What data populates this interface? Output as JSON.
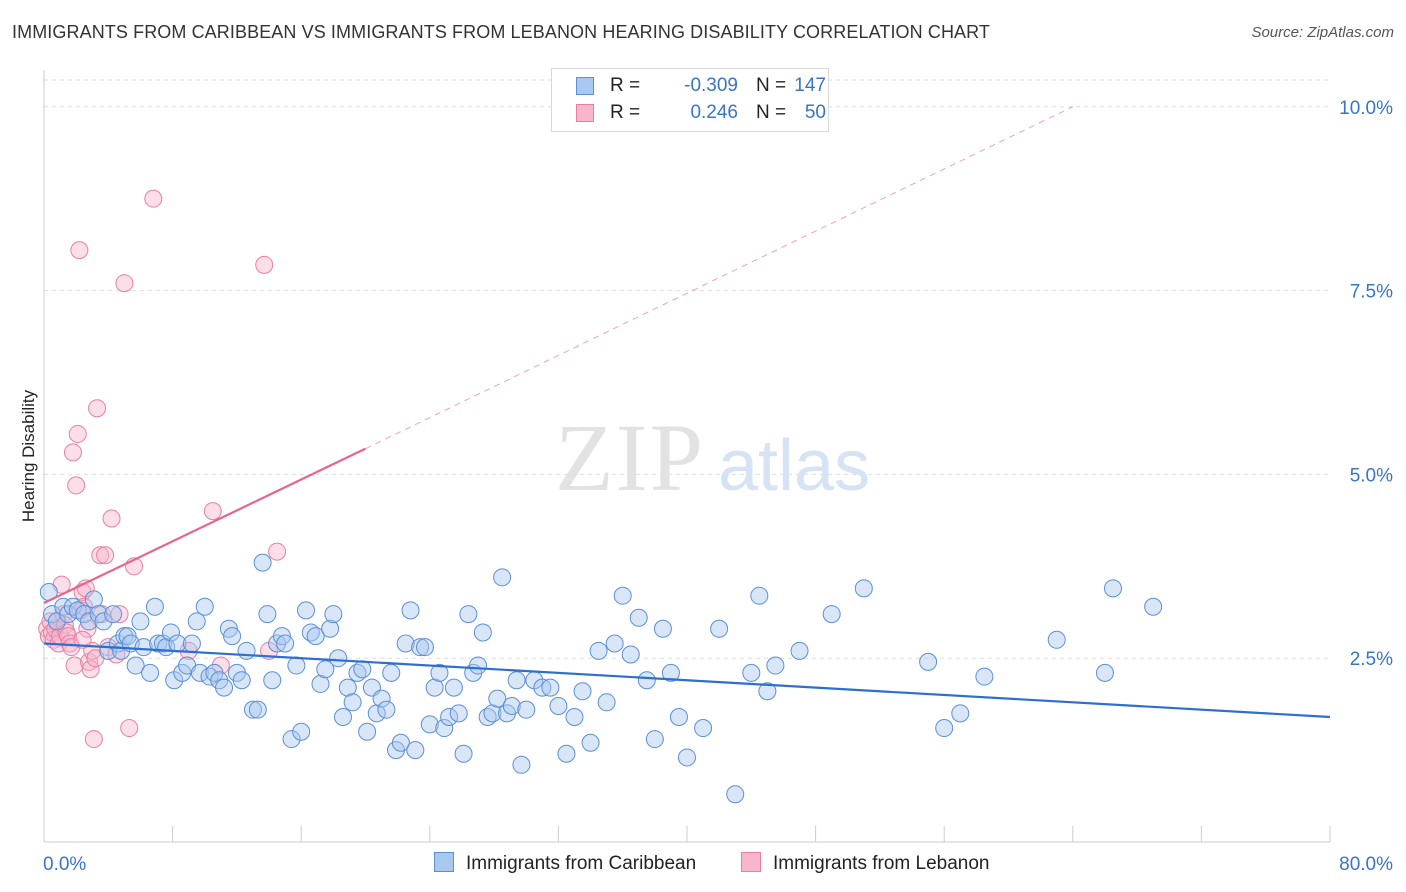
{
  "title": "IMMIGRANTS FROM CARIBBEAN VS IMMIGRANTS FROM LEBANON HEARING DISABILITY CORRELATION CHART",
  "source": "Source: ZipAtlas.com",
  "watermark": {
    "zip": "ZIP",
    "atlas": "atlas"
  },
  "legend": {
    "r_label": "R =",
    "n_label": "N =",
    "rows": [
      {
        "r": "-0.309",
        "n": "147"
      },
      {
        "r": "0.246",
        "n": "50"
      }
    ]
  },
  "colors": {
    "caribbean_fill": "#a9c8f0",
    "caribbean_stroke": "#5b8fd6",
    "caribbean_line": "#2c6fcf",
    "lebanon_fill": "#f7b6cb",
    "lebanon_stroke": "#e87fa2",
    "lebanon_line": "#e8638e",
    "tick_label": "#3a74c4",
    "grid": "#dddddd"
  },
  "chart_data": {
    "type": "scatter",
    "title": "IMMIGRANTS FROM CARIBBEAN VS IMMIGRANTS FROM LEBANON HEARING DISABILITY CORRELATION CHART",
    "xlabel": "",
    "ylabel": "Hearing Disability",
    "xlim": [
      0,
      80
    ],
    "ylim": [
      0,
      10.5
    ],
    "x_tick_labels": {
      "min": "0.0%",
      "max": "80.0%"
    },
    "y_ticks": [
      {
        "value": 2.5,
        "label": "2.5%"
      },
      {
        "value": 5.0,
        "label": "5.0%"
      },
      {
        "value": 7.5,
        "label": "7.5%"
      },
      {
        "value": 10.0,
        "label": "10.0%"
      }
    ],
    "grid": "horizontal dashed",
    "legend_position": "top-center",
    "series": [
      {
        "name": "Immigrants from Caribbean",
        "r": -0.309,
        "n": 147,
        "trend": {
          "x": [
            0,
            80
          ],
          "y": [
            2.7,
            1.7
          ],
          "dashed_extension": false
        },
        "points": [
          [
            0.3,
            3.4
          ],
          [
            0.5,
            3.1
          ],
          [
            0.8,
            3.0
          ],
          [
            1.2,
            3.2
          ],
          [
            1.5,
            3.1
          ],
          [
            1.8,
            3.2
          ],
          [
            2.1,
            3.15
          ],
          [
            2.5,
            3.1
          ],
          [
            2.8,
            3.0
          ],
          [
            3.1,
            3.3
          ],
          [
            3.4,
            3.1
          ],
          [
            3.7,
            3.0
          ],
          [
            4.0,
            2.6
          ],
          [
            4.3,
            3.1
          ],
          [
            4.6,
            2.7
          ],
          [
            4.8,
            2.6
          ],
          [
            5.0,
            2.8
          ],
          [
            5.2,
            2.8
          ],
          [
            5.4,
            2.7
          ],
          [
            5.7,
            2.4
          ],
          [
            6.0,
            3.0
          ],
          [
            6.2,
            2.65
          ],
          [
            6.6,
            2.3
          ],
          [
            6.9,
            3.2
          ],
          [
            7.1,
            2.7
          ],
          [
            7.4,
            2.7
          ],
          [
            7.6,
            2.65
          ],
          [
            7.9,
            2.85
          ],
          [
            8.1,
            2.2
          ],
          [
            8.3,
            2.7
          ],
          [
            8.6,
            2.3
          ],
          [
            8.9,
            2.4
          ],
          [
            9.2,
            2.7
          ],
          [
            9.5,
            3.0
          ],
          [
            9.7,
            2.3
          ],
          [
            10.0,
            3.2
          ],
          [
            10.3,
            2.25
          ],
          [
            10.6,
            2.3
          ],
          [
            10.9,
            2.2
          ],
          [
            11.2,
            2.1
          ],
          [
            11.5,
            2.9
          ],
          [
            11.7,
            2.8
          ],
          [
            12.0,
            2.3
          ],
          [
            12.3,
            2.2
          ],
          [
            12.6,
            2.6
          ],
          [
            13.0,
            1.8
          ],
          [
            13.3,
            1.8
          ],
          [
            13.6,
            3.8
          ],
          [
            13.9,
            3.1
          ],
          [
            14.2,
            2.2
          ],
          [
            14.5,
            2.7
          ],
          [
            14.8,
            2.8
          ],
          [
            15.0,
            2.7
          ],
          [
            15.4,
            1.4
          ],
          [
            15.7,
            2.4
          ],
          [
            16.0,
            1.5
          ],
          [
            16.3,
            3.15
          ],
          [
            16.6,
            2.85
          ],
          [
            16.9,
            2.8
          ],
          [
            17.2,
            2.15
          ],
          [
            17.5,
            2.35
          ],
          [
            17.8,
            2.9
          ],
          [
            18.0,
            3.1
          ],
          [
            18.3,
            2.5
          ],
          [
            18.6,
            1.7
          ],
          [
            18.9,
            2.1
          ],
          [
            19.2,
            1.9
          ],
          [
            19.5,
            2.3
          ],
          [
            19.8,
            2.35
          ],
          [
            20.1,
            1.5
          ],
          [
            20.4,
            2.1
          ],
          [
            20.7,
            1.75
          ],
          [
            21.0,
            1.95
          ],
          [
            21.3,
            1.8
          ],
          [
            21.6,
            2.3
          ],
          [
            21.9,
            1.25
          ],
          [
            22.2,
            1.35
          ],
          [
            22.5,
            2.7
          ],
          [
            22.8,
            3.15
          ],
          [
            23.1,
            1.25
          ],
          [
            23.4,
            2.65
          ],
          [
            23.7,
            2.65
          ],
          [
            24.0,
            1.6
          ],
          [
            24.3,
            2.1
          ],
          [
            24.6,
            2.3
          ],
          [
            24.9,
            1.55
          ],
          [
            25.2,
            1.7
          ],
          [
            25.5,
            2.1
          ],
          [
            25.8,
            1.75
          ],
          [
            26.1,
            1.2
          ],
          [
            26.4,
            3.1
          ],
          [
            26.7,
            2.3
          ],
          [
            27.0,
            2.4
          ],
          [
            27.3,
            2.85
          ],
          [
            27.6,
            1.7
          ],
          [
            27.9,
            1.75
          ],
          [
            28.2,
            1.95
          ],
          [
            28.5,
            3.6
          ],
          [
            28.8,
            1.75
          ],
          [
            29.1,
            1.85
          ],
          [
            29.4,
            2.2
          ],
          [
            29.7,
            1.05
          ],
          [
            30.0,
            1.8
          ],
          [
            30.5,
            2.2
          ],
          [
            31.0,
            2.1
          ],
          [
            31.5,
            2.1
          ],
          [
            32.0,
            1.85
          ],
          [
            32.5,
            1.2
          ],
          [
            33.0,
            1.7
          ],
          [
            33.5,
            2.05
          ],
          [
            34.0,
            1.35
          ],
          [
            34.5,
            2.6
          ],
          [
            35.0,
            1.9
          ],
          [
            35.5,
            2.7
          ],
          [
            36.0,
            3.35
          ],
          [
            36.5,
            2.55
          ],
          [
            37.0,
            3.05
          ],
          [
            37.5,
            2.2
          ],
          [
            38.0,
            1.4
          ],
          [
            38.5,
            2.9
          ],
          [
            39.0,
            2.3
          ],
          [
            39.5,
            1.7
          ],
          [
            40.0,
            1.15
          ],
          [
            41.0,
            1.55
          ],
          [
            42.0,
            2.9
          ],
          [
            43.0,
            0.65
          ],
          [
            44.0,
            2.3
          ],
          [
            44.5,
            3.35
          ],
          [
            45.0,
            2.05
          ],
          [
            45.5,
            2.4
          ],
          [
            47.0,
            2.6
          ],
          [
            49.0,
            3.1
          ],
          [
            51.0,
            3.45
          ],
          [
            55.0,
            2.45
          ],
          [
            56.0,
            1.55
          ],
          [
            57.0,
            1.75
          ],
          [
            58.5,
            2.25
          ],
          [
            63.0,
            2.75
          ],
          [
            66.0,
            2.3
          ],
          [
            66.5,
            3.45
          ],
          [
            69.0,
            3.2
          ]
        ]
      },
      {
        "name": "Immigrants from Lebanon",
        "r": 0.246,
        "n": 50,
        "trend": {
          "x": [
            0,
            20
          ],
          "y": [
            3.25,
            5.35
          ],
          "dashed_extension": {
            "x": [
              20,
              64
            ],
            "y": [
              5.35,
              10.0
            ]
          }
        },
        "points": [
          [
            0.2,
            2.9
          ],
          [
            0.3,
            2.8
          ],
          [
            0.4,
            3.0
          ],
          [
            0.5,
            2.85
          ],
          [
            0.6,
            2.75
          ],
          [
            0.7,
            2.9
          ],
          [
            0.8,
            3.0
          ],
          [
            0.9,
            2.7
          ],
          [
            1.0,
            2.8
          ],
          [
            1.1,
            3.5
          ],
          [
            1.2,
            3.1
          ],
          [
            1.3,
            2.95
          ],
          [
            1.4,
            2.85
          ],
          [
            1.5,
            2.8
          ],
          [
            1.6,
            2.7
          ],
          [
            1.7,
            2.65
          ],
          [
            1.8,
            5.3
          ],
          [
            1.9,
            2.4
          ],
          [
            2.0,
            4.85
          ],
          [
            2.1,
            5.55
          ],
          [
            2.2,
            8.05
          ],
          [
            2.3,
            3.15
          ],
          [
            2.4,
            3.4
          ],
          [
            2.5,
            3.2
          ],
          [
            2.6,
            3.45
          ],
          [
            2.7,
            2.9
          ],
          [
            2.8,
            2.45
          ],
          [
            2.9,
            2.35
          ],
          [
            3.0,
            2.6
          ],
          [
            3.1,
            1.4
          ],
          [
            3.2,
            2.5
          ],
          [
            3.3,
            5.9
          ],
          [
            3.5,
            3.9
          ],
          [
            3.8,
            3.9
          ],
          [
            4.0,
            2.65
          ],
          [
            4.2,
            4.4
          ],
          [
            4.5,
            2.55
          ],
          [
            4.7,
            3.1
          ],
          [
            5.0,
            7.6
          ],
          [
            5.3,
            1.55
          ],
          [
            5.6,
            3.75
          ],
          [
            6.8,
            8.75
          ],
          [
            9.0,
            2.6
          ],
          [
            10.5,
            4.5
          ],
          [
            11.0,
            2.4
          ],
          [
            13.7,
            7.85
          ],
          [
            14.5,
            3.95
          ],
          [
            14.0,
            2.6
          ],
          [
            3.6,
            3.1
          ],
          [
            2.4,
            2.75
          ]
        ]
      }
    ]
  }
}
